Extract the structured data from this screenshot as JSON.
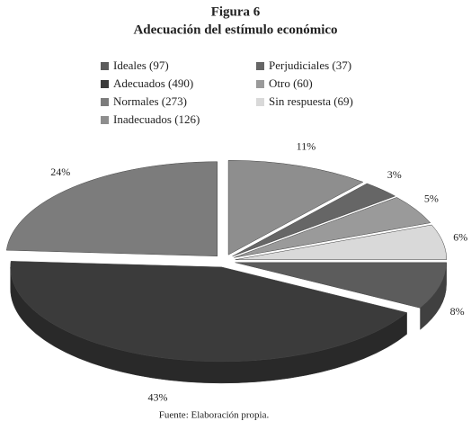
{
  "chart_data": {
    "type": "pie",
    "title": "Figura 6",
    "subtitle": "Adecuación del estímulo económico",
    "categories": [
      "Ideales (97)",
      "Adecuados (490)",
      "Normales (273)",
      "Inadecuados (126)",
      "Perjudiciales (37)",
      "Otro (60)",
      "Sin respuesta (69)"
    ],
    "values": [
      8,
      43,
      24,
      11,
      3,
      5,
      6
    ],
    "value_labels": [
      "8%",
      "43%",
      "24%",
      "11%",
      "3%",
      "5%",
      "6%"
    ],
    "colors": [
      "#5c5c5c",
      "#3b3b3b",
      "#7c7c7c",
      "#8e8e8e",
      "#666666",
      "#9a9a9a",
      "#d9d9d9"
    ],
    "source": "Fuente: Elaboración propia."
  }
}
